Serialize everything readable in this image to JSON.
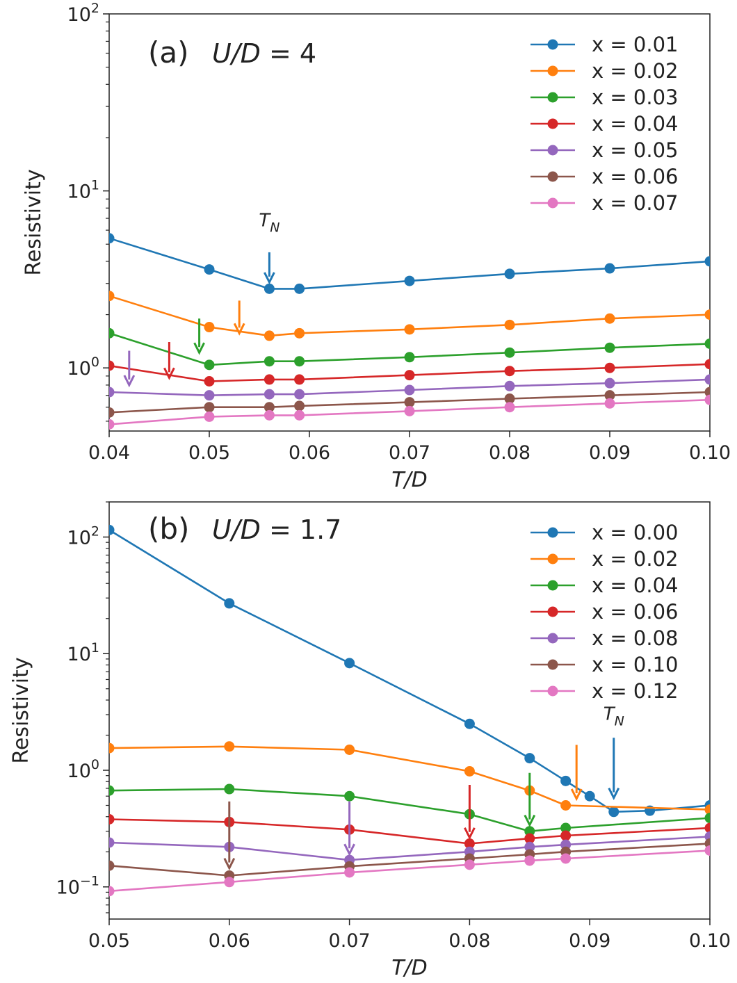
{
  "chart_data": [
    {
      "type": "line",
      "panel_label": "(a)",
      "title_var": "U/D",
      "title_eq": " = 4",
      "xlabel": "T/D",
      "ylabel": "Resistivity",
      "yscale": "log",
      "xlim": [
        0.04,
        0.1
      ],
      "ylim": [
        0.44,
        100
      ],
      "x_ticks": [
        "0.04",
        "0.05",
        "0.06",
        "0.07",
        "0.08",
        "0.09",
        "0.10"
      ],
      "y_ticks": [
        {
          "value": 100,
          "base": "10",
          "exp": "2"
        },
        {
          "value": 10,
          "base": "10",
          "exp": "1"
        },
        {
          "value": 1,
          "base": "10",
          "exp": "0"
        }
      ],
      "x": [
        0.04,
        0.05,
        0.056,
        0.059,
        0.07,
        0.08,
        0.09,
        0.1
      ],
      "series": [
        {
          "name": "x = 0.01",
          "color": "#1f77b4",
          "values": [
            5.4,
            3.6,
            2.8,
            2.8,
            3.1,
            3.4,
            3.65,
            4.0
          ]
        },
        {
          "name": "x = 0.02",
          "color": "#ff7f0e",
          "values": [
            2.55,
            1.7,
            1.52,
            1.57,
            1.65,
            1.75,
            1.9,
            2.0
          ]
        },
        {
          "name": "x = 0.03",
          "color": "#2ca02c",
          "values": [
            1.57,
            1.04,
            1.09,
            1.09,
            1.15,
            1.22,
            1.3,
            1.37
          ]
        },
        {
          "name": "x = 0.04",
          "color": "#d62728",
          "values": [
            1.03,
            0.84,
            0.86,
            0.86,
            0.91,
            0.96,
            1.0,
            1.05
          ]
        },
        {
          "name": "x = 0.05",
          "color": "#9467bd",
          "values": [
            0.73,
            0.7,
            0.71,
            0.71,
            0.75,
            0.79,
            0.82,
            0.86
          ]
        },
        {
          "name": "x = 0.06",
          "color": "#8c564b",
          "values": [
            0.56,
            0.6,
            0.6,
            0.61,
            0.64,
            0.67,
            0.7,
            0.73
          ]
        },
        {
          "name": "x = 0.07",
          "color": "#e377c2",
          "values": [
            0.48,
            0.53,
            0.54,
            0.54,
            0.57,
            0.6,
            0.63,
            0.66
          ]
        }
      ],
      "annotations": [
        {
          "type": "arrow",
          "color": "#1f77b4",
          "x": 0.056,
          "y_top": 4.5,
          "y_tip": 3.05
        },
        {
          "type": "arrow",
          "color": "#ff7f0e",
          "x": 0.053,
          "y_top": 2.4,
          "y_tip": 1.57
        },
        {
          "type": "arrow",
          "color": "#2ca02c",
          "x": 0.049,
          "y_top": 1.9,
          "y_tip": 1.22
        },
        {
          "type": "arrow",
          "color": "#d62728",
          "x": 0.046,
          "y_top": 1.4,
          "y_tip": 0.88
        },
        {
          "type": "arrow",
          "color": "#9467bd",
          "x": 0.042,
          "y_top": 1.25,
          "y_tip": 0.8
        }
      ],
      "tn_label": {
        "main": "T",
        "sub": "N",
        "x": 0.056,
        "y": 6.3
      }
    },
    {
      "type": "line",
      "panel_label": "(b)",
      "title_var": "U/D",
      "title_eq": " = 1.7",
      "xlabel": "T/D",
      "ylabel": "Resistivity",
      "yscale": "log",
      "xlim": [
        0.05,
        0.1
      ],
      "ylim": [
        0.053,
        200
      ],
      "x_ticks": [
        "0.05",
        "0.06",
        "0.07",
        "0.08",
        "0.09",
        "0.10"
      ],
      "y_ticks": [
        {
          "value": 100,
          "base": "10",
          "exp": "2"
        },
        {
          "value": 10,
          "base": "10",
          "exp": "1"
        },
        {
          "value": 1,
          "base": "10",
          "exp": "0"
        },
        {
          "value": 0.1,
          "base": "10",
          "exp": "−1"
        }
      ],
      "series": [
        {
          "name": "x = 0.00",
          "color": "#1f77b4",
          "x": [
            0.05,
            0.06,
            0.07,
            0.08,
            0.085,
            0.088,
            0.09,
            0.092,
            0.095,
            0.1
          ],
          "values": [
            115,
            27,
            8.3,
            2.5,
            1.27,
            0.81,
            0.6,
            0.44,
            0.45,
            0.5
          ]
        },
        {
          "name": "x = 0.02",
          "color": "#ff7f0e",
          "x": [
            0.05,
            0.06,
            0.07,
            0.08,
            0.085,
            0.088,
            0.1
          ],
          "values": [
            1.55,
            1.6,
            1.5,
            0.98,
            0.67,
            0.5,
            0.46
          ]
        },
        {
          "name": "x = 0.04",
          "color": "#2ca02c",
          "x": [
            0.05,
            0.06,
            0.07,
            0.08,
            0.085,
            0.088,
            0.1
          ],
          "values": [
            0.67,
            0.69,
            0.6,
            0.42,
            0.3,
            0.32,
            0.39
          ]
        },
        {
          "name": "x = 0.06",
          "color": "#d62728",
          "x": [
            0.05,
            0.06,
            0.07,
            0.08,
            0.085,
            0.088,
            0.1
          ],
          "values": [
            0.38,
            0.36,
            0.31,
            0.235,
            0.26,
            0.275,
            0.32
          ]
        },
        {
          "name": "x = 0.08",
          "color": "#9467bd",
          "x": [
            0.05,
            0.06,
            0.07,
            0.08,
            0.085,
            0.088,
            0.1
          ],
          "values": [
            0.24,
            0.22,
            0.17,
            0.2,
            0.22,
            0.23,
            0.27
          ]
        },
        {
          "name": "x = 0.10",
          "color": "#8c564b",
          "x": [
            0.05,
            0.06,
            0.07,
            0.08,
            0.085,
            0.088,
            0.1
          ],
          "values": [
            0.152,
            0.125,
            0.15,
            0.175,
            0.19,
            0.2,
            0.235
          ]
        },
        {
          "name": "x = 0.12",
          "color": "#e377c2",
          "x": [
            0.05,
            0.06,
            0.07,
            0.08,
            0.085,
            0.088,
            0.1
          ],
          "values": [
            0.092,
            0.11,
            0.133,
            0.155,
            0.168,
            0.175,
            0.205
          ]
        }
      ],
      "annotations": [
        {
          "type": "arrow",
          "color": "#1f77b4",
          "x": 0.092,
          "y_top": 1.9,
          "y_tip": 0.58
        },
        {
          "type": "arrow",
          "color": "#ff7f0e",
          "x": 0.0889,
          "y_top": 1.65,
          "y_tip": 0.57
        },
        {
          "type": "arrow",
          "color": "#2ca02c",
          "x": 0.085,
          "y_top": 0.95,
          "y_tip": 0.34
        },
        {
          "type": "arrow",
          "color": "#d62728",
          "x": 0.08,
          "y_top": 0.75,
          "y_tip": 0.265
        },
        {
          "type": "arrow",
          "color": "#9467bd",
          "x": 0.07,
          "y_top": 0.54,
          "y_tip": 0.192
        },
        {
          "type": "arrow",
          "color": "#8c564b",
          "x": 0.06,
          "y_top": 0.54,
          "y_tip": 0.145
        }
      ],
      "tn_label": {
        "main": "T",
        "sub": "N",
        "x": 0.092,
        "y": 2.7
      }
    }
  ]
}
